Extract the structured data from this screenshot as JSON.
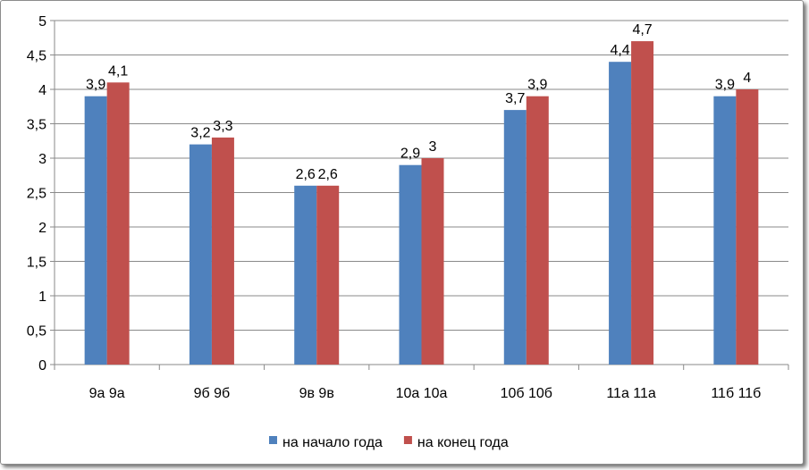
{
  "chart_data": {
    "type": "bar",
    "categories": [
      "9а 9а",
      "9б 9б",
      "9в 9в",
      "10а 10а",
      "10б 10б",
      "11а 11а",
      "11б 11б"
    ],
    "series": [
      {
        "name": "на начало года",
        "color": "#4F81BD",
        "values": [
          3.9,
          3.2,
          2.6,
          2.9,
          3.7,
          4.4,
          3.9
        ],
        "labels": [
          "3,9",
          "3,2",
          "2,6",
          "2,9",
          "3,7",
          "4,4",
          "3,9"
        ]
      },
      {
        "name": "на конец года",
        "color": "#C0504D",
        "values": [
          4.1,
          3.3,
          2.6,
          3.0,
          3.9,
          4.7,
          4.0
        ],
        "labels": [
          "4,1",
          "3,3",
          "2,6",
          "3",
          "3,9",
          "4,7",
          "4"
        ]
      }
    ],
    "yticks": [
      0,
      0.5,
      1,
      1.5,
      2,
      2.5,
      3,
      3.5,
      4,
      4.5,
      5
    ],
    "ytick_labels": [
      "0",
      "0,5",
      "1",
      "1,5",
      "2",
      "2,5",
      "3",
      "3,5",
      "4",
      "4,5",
      "5"
    ],
    "ylim": [
      0,
      5
    ],
    "grid": true,
    "legend_position": "bottom",
    "title": "",
    "xlabel": "",
    "ylabel": ""
  }
}
